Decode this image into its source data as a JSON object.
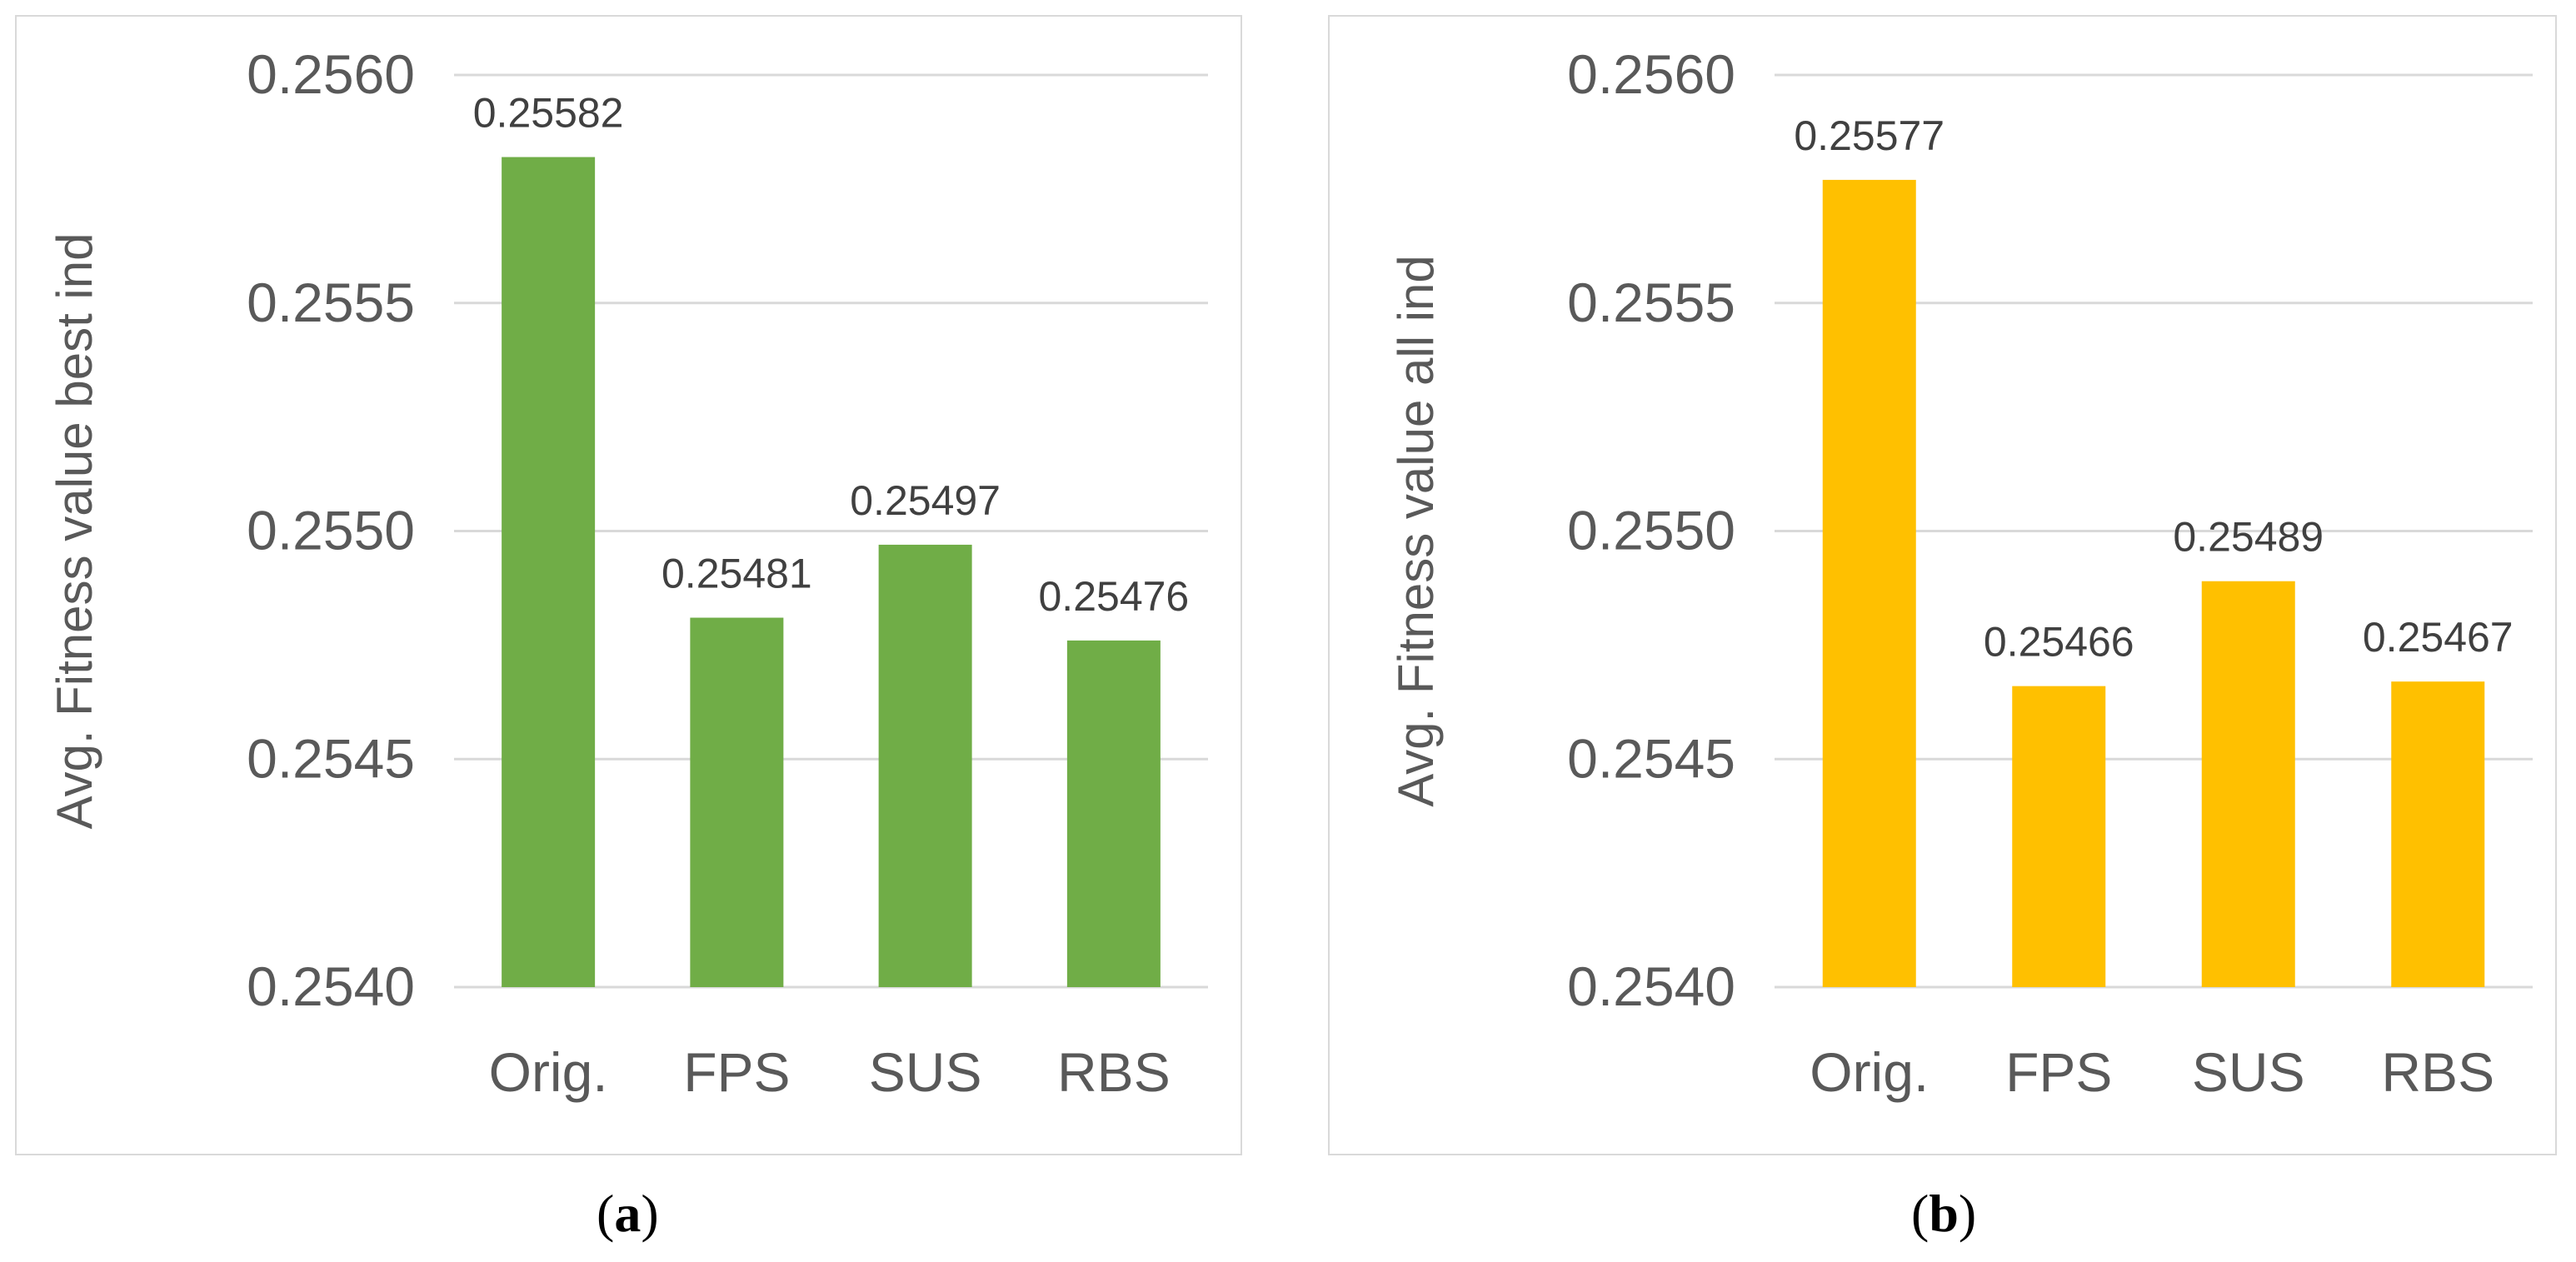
{
  "chart_data": [
    {
      "type": "bar",
      "ylabel": "Avg. Fitness value best ind",
      "categories": [
        "Orig.",
        "FPS",
        "SUS",
        "RBS"
      ],
      "values": [
        0.25582,
        0.25481,
        0.25497,
        0.25476
      ],
      "data_labels": [
        "0.25582",
        "0.25481",
        "0.25497",
        "0.25476"
      ],
      "ylim": [
        0.254,
        0.256
      ],
      "yticks": [
        "0.2540",
        "0.2545",
        "0.2550",
        "0.2555",
        "0.2560"
      ],
      "ytick_values": [
        0.254,
        0.2545,
        0.255,
        0.2555,
        0.256
      ],
      "color": "#70ad47",
      "grid": true,
      "caption": "a"
    },
    {
      "type": "bar",
      "ylabel": "Avg. Fitness value all ind",
      "categories": [
        "Orig.",
        "FPS",
        "SUS",
        "RBS"
      ],
      "values": [
        0.25577,
        0.25466,
        0.25489,
        0.25467
      ],
      "data_labels": [
        "0.25577",
        "0.25466",
        "0.25489",
        "0.25467"
      ],
      "ylim": [
        0.254,
        0.256
      ],
      "yticks": [
        "0.2540",
        "0.2545",
        "0.2550",
        "0.2555",
        "0.2560"
      ],
      "ytick_values": [
        0.254,
        0.2545,
        0.255,
        0.2555,
        0.256
      ],
      "color": "#ffc000",
      "grid": true,
      "caption": "b"
    }
  ]
}
